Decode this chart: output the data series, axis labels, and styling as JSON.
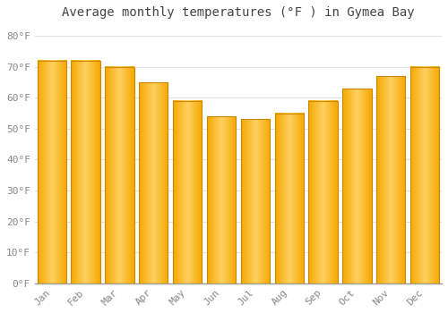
{
  "title": "Average monthly temperatures (°F ) in Gymea Bay",
  "months": [
    "Jan",
    "Feb",
    "Mar",
    "Apr",
    "May",
    "Jun",
    "Jul",
    "Aug",
    "Sep",
    "Oct",
    "Nov",
    "Dec"
  ],
  "values": [
    72,
    72,
    70,
    65,
    59,
    54,
    53,
    55,
    59,
    63,
    67,
    70
  ],
  "bar_color_left": "#F5A800",
  "bar_color_mid": "#FFD060",
  "bar_color_right": "#F5A800",
  "bar_edge_color": "#CC8800",
  "background_color": "#FFFFFF",
  "grid_color": "#E0E0E0",
  "ylim": [
    0,
    84
  ],
  "yticks": [
    0,
    10,
    20,
    30,
    40,
    50,
    60,
    70,
    80
  ],
  "ytick_labels": [
    "0°F",
    "10°F",
    "20°F",
    "30°F",
    "40°F",
    "50°F",
    "60°F",
    "70°F",
    "80°F"
  ],
  "title_fontsize": 10,
  "tick_fontsize": 8,
  "font_family": "monospace",
  "tick_color": "#888888",
  "bar_width": 0.85
}
